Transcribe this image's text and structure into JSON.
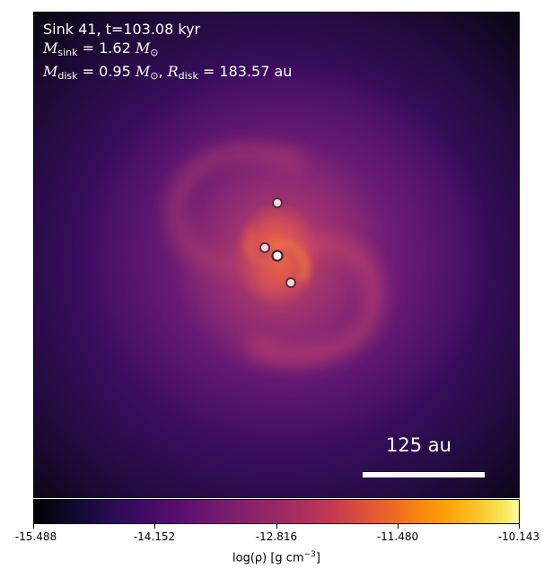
{
  "annotation": {
    "title_line": "Sink 41, t=103.08 kyr",
    "sink_mass_symbol": "M",
    "sink_mass_subscript": "sink",
    "sink_mass_value": "= 1.62",
    "disk_mass_symbol": "M",
    "disk_mass_subscript": "disk",
    "disk_mass_value": "= 0.95",
    "disk_radius_symbol": "R",
    "disk_radius_subscript": "disk",
    "disk_radius_value": "= 183.57 au",
    "solar_mass_unit": "M",
    "solar_subscript": "⊙"
  },
  "scale_bar": {
    "label": "125 au"
  },
  "colorbar": {
    "colormap": "inferno",
    "min": -15.488,
    "max": -10.143,
    "tick_labels": [
      "-15.488",
      "-14.152",
      "-12.816",
      "-11.480",
      "-10.143"
    ],
    "label_prefix": "log(ρ) [g cm",
    "label_exponent": "−3",
    "label_suffix": "]"
  },
  "colors": {
    "text_on_image": "#ffffff",
    "sink_fill": "#f3d7dc",
    "sink_primary_fill": "#ffffff",
    "sink_outline": "#5a2a3d"
  }
}
